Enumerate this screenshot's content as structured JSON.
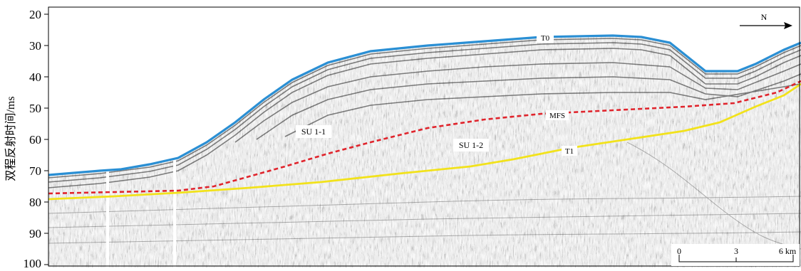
{
  "yaxis": {
    "label": "双程反射时间/ms",
    "ticks": [
      "20",
      "30",
      "40",
      "50",
      "60",
      "70",
      "80",
      "90",
      "100"
    ]
  },
  "north_arrow": {
    "label": "N"
  },
  "horizons": {
    "t0": {
      "label": "T0",
      "color": "#2a8fd4"
    },
    "mfs": {
      "label": "MFS",
      "color": "#e0242c"
    },
    "t1": {
      "label": "T1",
      "color": "#f2e21b"
    }
  },
  "units": {
    "su11": {
      "label": "SU 1-1"
    },
    "su12": {
      "label": "SU 1-2"
    }
  },
  "scale_bar": {
    "tick0": "0",
    "tick1": "3",
    "tick2": "6 km"
  }
}
